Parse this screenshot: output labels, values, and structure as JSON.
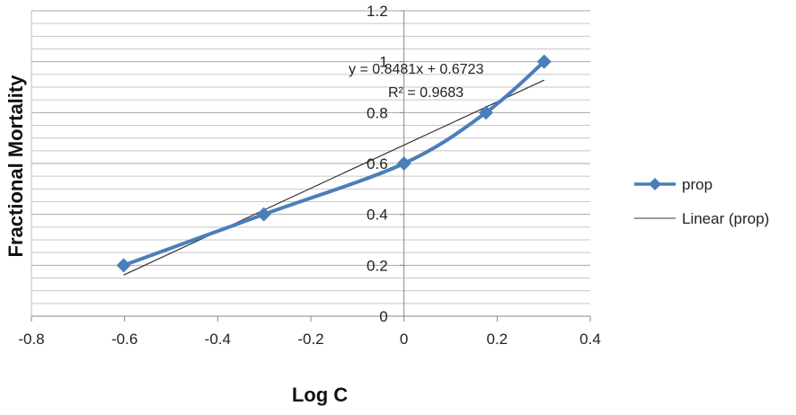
{
  "chart_data": {
    "type": "line",
    "title": "",
    "xlabel": "Log C",
    "ylabel": "Fractional Mortality",
    "xlim": [
      -0.8,
      0.4
    ],
    "ylim": [
      0,
      1.2
    ],
    "x_ticks": [
      "-0.8",
      "-0.6",
      "-0.4",
      "-0.2",
      "0",
      "0.2",
      "0.4"
    ],
    "y_ticks": [
      "0",
      "0.2",
      "0.4",
      "0.6",
      "0.8",
      "1",
      "1.2"
    ],
    "grid": "horizontal",
    "legend_position": "right",
    "series": [
      {
        "name": "prop",
        "color": "#4a7ebb",
        "marker": "diamond",
        "x": [
          -0.602,
          -0.301,
          0,
          0.176,
          0.301
        ],
        "y": [
          0.2,
          0.4,
          0.6,
          0.8,
          1.0
        ]
      }
    ],
    "trendline": {
      "name": "Linear (prop)",
      "color": "#333333",
      "slope": 0.8481,
      "intercept": 0.6723,
      "x_range": [
        -0.602,
        0.301
      ]
    },
    "annotations": {
      "equation": "y = 0.8481x + 0.6723",
      "r_squared": "R² = 0.9683"
    }
  }
}
